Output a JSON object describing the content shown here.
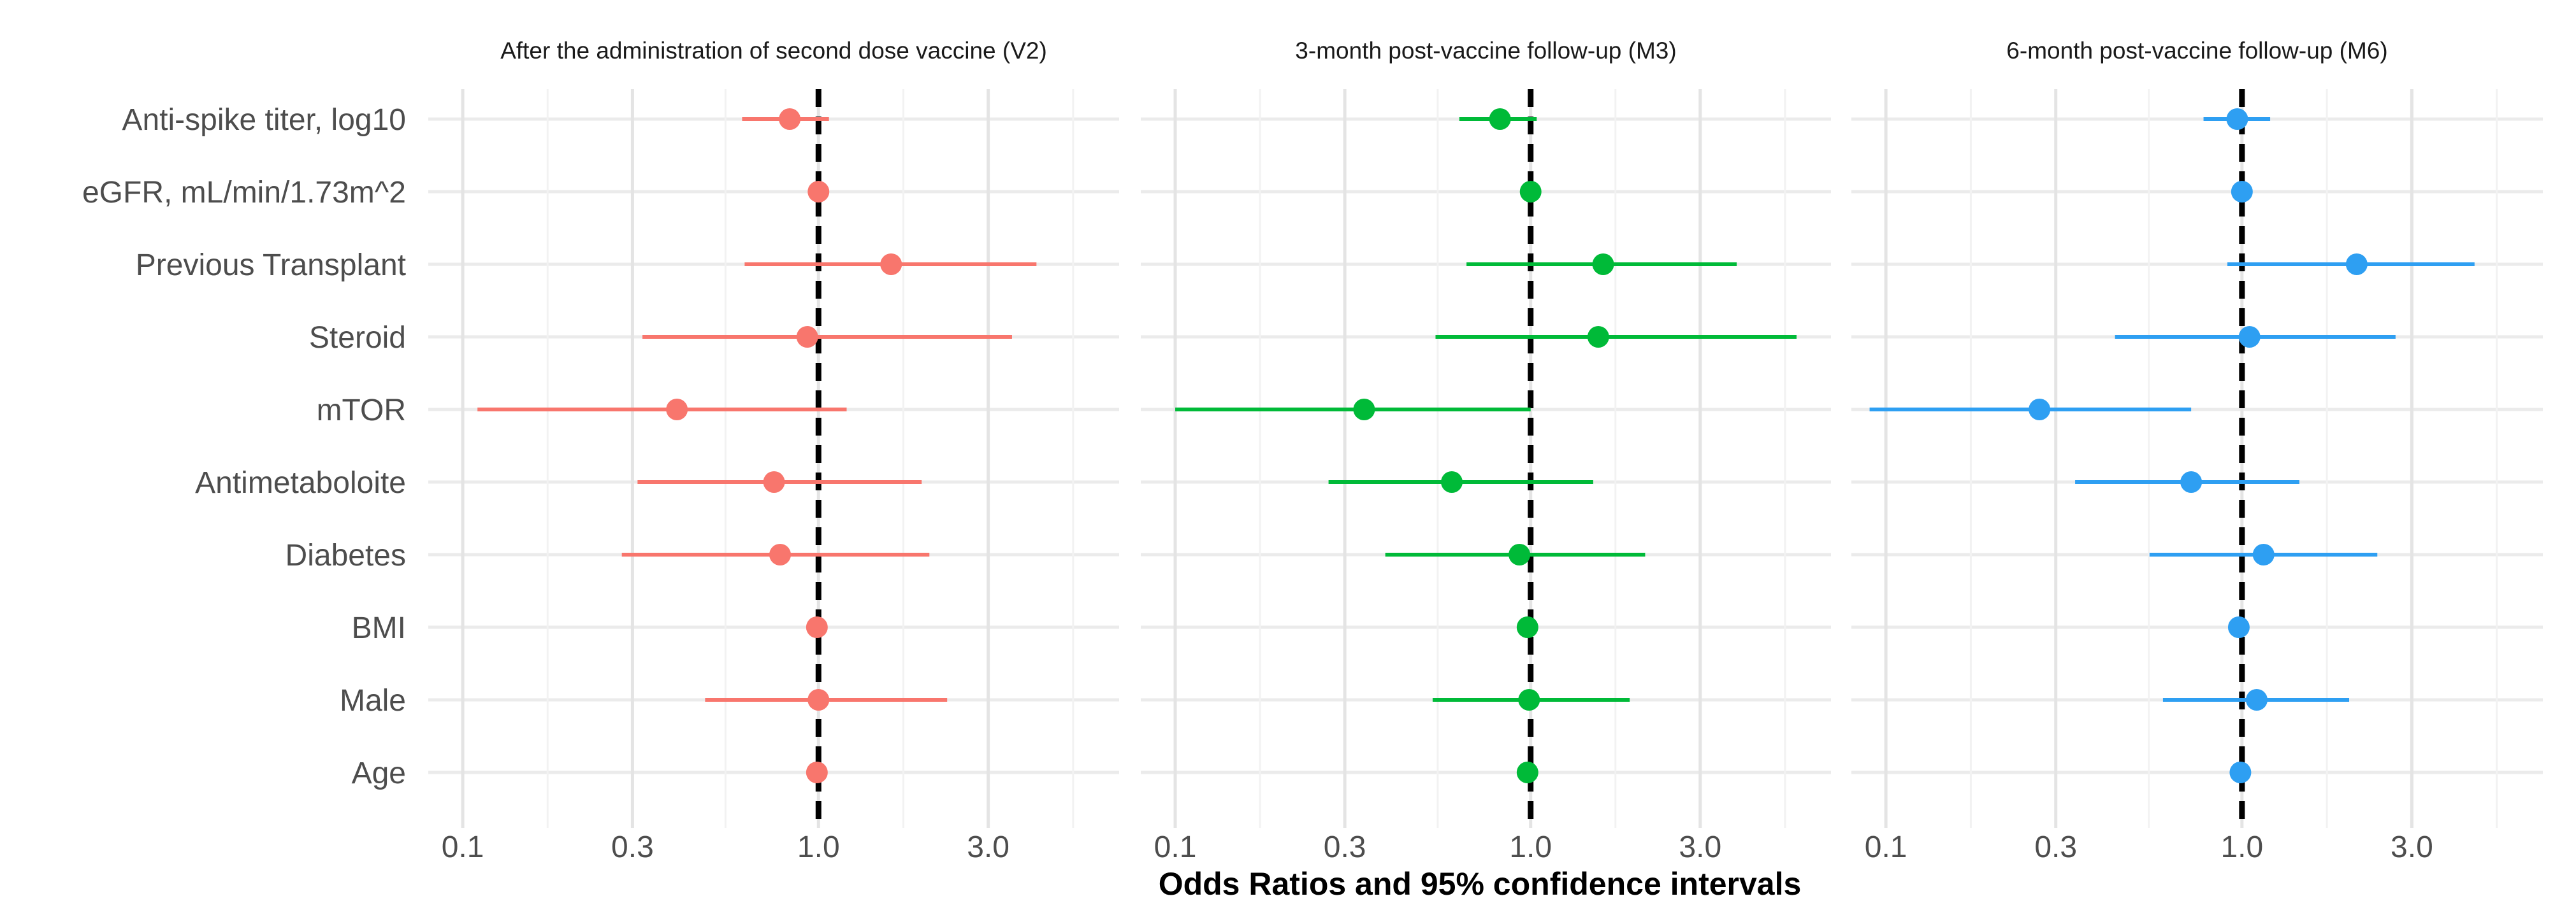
{
  "chart_data": {
    "type": "forest",
    "xlabel": "Odds Ratios and 95% confidence intervals",
    "x_scale": "log10",
    "xlim": [
      0.08,
      7
    ],
    "x_ticks": [
      0.1,
      0.3,
      1.0,
      3.0
    ],
    "x_tick_labels": [
      "0.1",
      "0.3",
      "1.0",
      "3.0"
    ],
    "reference_line": 1.0,
    "grid": true,
    "legend": "none",
    "categories": [
      "Anti-spike titer, log10",
      "eGFR, mL/min/1.73m^2",
      "Previous Transplant",
      "Steroid",
      "mTOR",
      "Antimetaboloite",
      "Diabetes",
      "BMI",
      "Male",
      "Age"
    ],
    "panels": [
      {
        "title": "After the administration of second dose vaccine (V2)",
        "color": "#F8766D",
        "estimates": [
          {
            "or": 0.83,
            "lo": 0.61,
            "hi": 1.07
          },
          {
            "or": 1.0,
            "lo": 0.98,
            "hi": 1.02
          },
          {
            "or": 1.6,
            "lo": 0.62,
            "hi": 4.1
          },
          {
            "or": 0.93,
            "lo": 0.32,
            "hi": 3.5
          },
          {
            "or": 0.4,
            "lo": 0.11,
            "hi": 1.2
          },
          {
            "or": 0.75,
            "lo": 0.31,
            "hi": 1.95
          },
          {
            "or": 0.78,
            "lo": 0.28,
            "hi": 2.05
          },
          {
            "or": 0.99,
            "lo": 0.96,
            "hi": 1.02
          },
          {
            "or": 1.0,
            "lo": 0.48,
            "hi": 2.3
          },
          {
            "or": 0.99,
            "lo": 0.97,
            "hi": 1.01
          }
        ]
      },
      {
        "title": "3-month post-vaccine follow-up (M3)",
        "color": "#00BA38",
        "estimates": [
          {
            "or": 0.82,
            "lo": 0.63,
            "hi": 1.04
          },
          {
            "or": 1.0,
            "lo": 0.98,
            "hi": 1.02
          },
          {
            "or": 1.6,
            "lo": 0.66,
            "hi": 3.8
          },
          {
            "or": 1.55,
            "lo": 0.54,
            "hi": 5.6
          },
          {
            "or": 0.34,
            "lo": 0.1,
            "hi": 1.0
          },
          {
            "or": 0.6,
            "lo": 0.27,
            "hi": 1.5
          },
          {
            "or": 0.93,
            "lo": 0.39,
            "hi": 2.1
          },
          {
            "or": 0.98,
            "lo": 0.96,
            "hi": 1.01
          },
          {
            "or": 0.99,
            "lo": 0.53,
            "hi": 1.9
          },
          {
            "or": 0.98,
            "lo": 0.96,
            "hi": 1.0
          }
        ]
      },
      {
        "title": "6-month post-vaccine follow-up (M6)",
        "color": "#2E9FF2",
        "estimates": [
          {
            "or": 0.97,
            "lo": 0.78,
            "hi": 1.2
          },
          {
            "or": 1.0,
            "lo": 0.98,
            "hi": 1.02
          },
          {
            "or": 2.1,
            "lo": 0.91,
            "hi": 4.5
          },
          {
            "or": 1.05,
            "lo": 0.44,
            "hi": 2.7
          },
          {
            "or": 0.27,
            "lo": 0.09,
            "hi": 0.72
          },
          {
            "or": 0.72,
            "lo": 0.34,
            "hi": 1.45
          },
          {
            "or": 1.15,
            "lo": 0.55,
            "hi": 2.4
          },
          {
            "or": 0.98,
            "lo": 0.95,
            "hi": 1.01
          },
          {
            "or": 1.1,
            "lo": 0.6,
            "hi": 2.0
          },
          {
            "or": 0.99,
            "lo": 0.97,
            "hi": 1.01
          }
        ]
      }
    ]
  }
}
